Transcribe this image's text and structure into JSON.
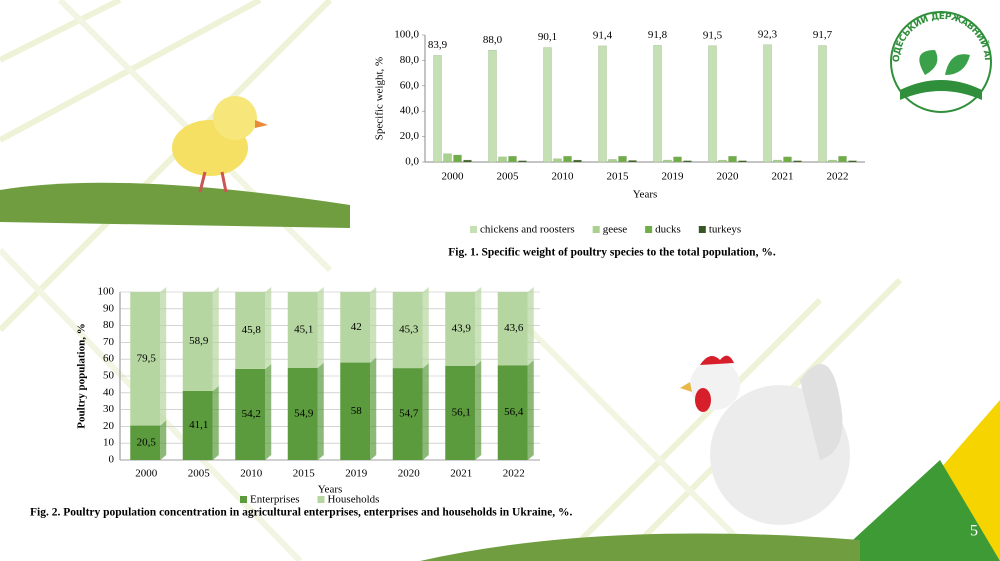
{
  "page_number": "5",
  "logo_text": "ОДЕСЬКИЙ ДЕРЖАВНИЙ АГРАРНИЙ УНІВЕРСИТЕТ",
  "chart_data": [
    {
      "type": "bar",
      "caption": "Fig. 1. Specific weight of poultry species to the total population, %.",
      "x_label": "Years",
      "y_label": "Specific weight, %",
      "categories": [
        "2000",
        "2005",
        "2010",
        "2015",
        "2019",
        "2020",
        "2021",
        "2022"
      ],
      "series": [
        {
          "name": "chickens and roosters",
          "color": "#c5e0b4",
          "values": [
            83.9,
            88.0,
            90.1,
            91.4,
            91.8,
            91.5,
            92.3,
            91.7
          ],
          "value_labels": [
            "83,9",
            "88,0",
            "90,1",
            "91,4",
            "91,8",
            "91,5",
            "92,3",
            "91,7"
          ]
        },
        {
          "name": "geese",
          "color": "#a9d18e",
          "values": [
            6.5,
            4,
            2.5,
            2,
            1.5,
            1.5,
            1.5,
            1.5
          ]
        },
        {
          "name": "ducks",
          "color": "#70ad47",
          "values": [
            5.5,
            4.5,
            4.5,
            4.5,
            4,
            4.5,
            4,
            4.5
          ]
        },
        {
          "name": "turkeys",
          "color": "#375623",
          "values": [
            1.5,
            1,
            1.5,
            1.2,
            1,
            1,
            1,
            1
          ]
        }
      ],
      "ylim": [
        0,
        100
      ],
      "yticks": [
        {
          "value": 0,
          "label": "0,0"
        },
        {
          "value": 20,
          "label": "20,0"
        },
        {
          "value": 40,
          "label": "40,0"
        },
        {
          "value": 60,
          "label": "60,0"
        },
        {
          "value": 80,
          "label": "80,0"
        },
        {
          "value": 100,
          "label": "100,0"
        }
      ],
      "legend": "bottom"
    },
    {
      "type": "stacked_bar",
      "caption": "Fig. 2. Poultry population concentration in agricultural enterprises, enterprises and households in Ukraine, %.",
      "x_label": "Years",
      "y_label": "Poultry population, %",
      "categories": [
        "2000",
        "2005",
        "2010",
        "2015",
        "2019",
        "2020",
        "2021",
        "2022"
      ],
      "series": [
        {
          "name": "Enterprises",
          "color": "#5b9b3d",
          "values": [
            20.5,
            41.1,
            54.2,
            54.9,
            58,
            54.7,
            56.1,
            56.4
          ],
          "value_labels": [
            "20,5",
            "41,1",
            "54,2",
            "54,9",
            "58",
            "54,7",
            "56,1",
            "56,4"
          ]
        },
        {
          "name": "Households",
          "color": "#b5d6a0",
          "values": [
            79.5,
            58.9,
            45.8,
            45.1,
            42,
            45.3,
            43.9,
            43.6
          ],
          "value_labels": [
            "79,5",
            "58,9",
            "45,8",
            "45,1",
            "42",
            "45,3",
            "43,9",
            "43,6"
          ]
        }
      ],
      "ylim": [
        0,
        100
      ],
      "yticks": [
        0,
        10,
        20,
        30,
        40,
        50,
        60,
        70,
        80,
        90,
        100
      ],
      "grid": true,
      "legend": "bottom"
    }
  ]
}
